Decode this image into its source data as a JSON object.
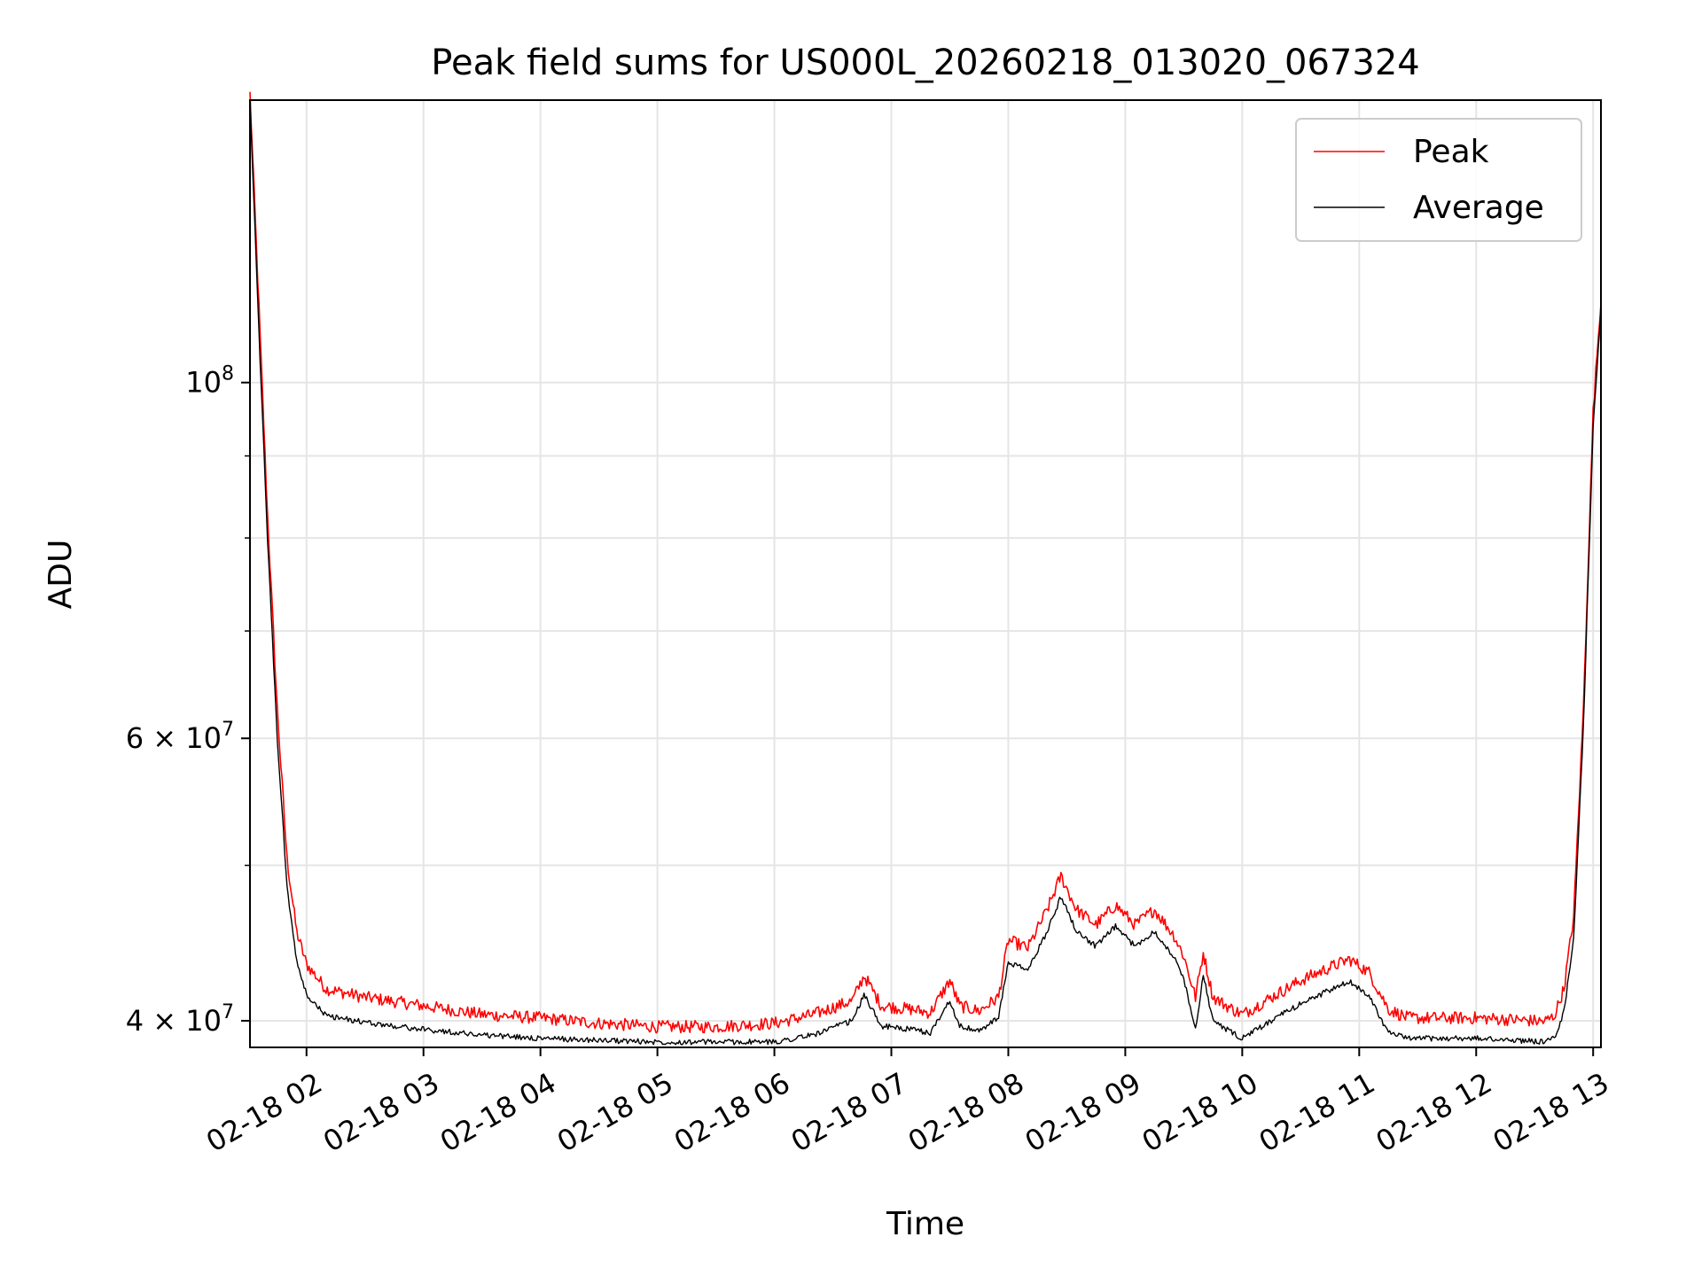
{
  "chart_data": {
    "type": "line",
    "title": "Peak field sums for US000L_20260218_013020_067324",
    "xlabel": "Time",
    "ylabel": "ADU",
    "y_scale": "log",
    "ylim": [
      38500000,
      150000000
    ],
    "xlim": [
      "2026-02-18 01:31",
      "2026-02-18 13:04"
    ],
    "grid": true,
    "legend_position": "top-right",
    "x_ticks": [
      "02-18 02",
      "02-18 03",
      "02-18 04",
      "02-18 05",
      "02-18 06",
      "02-18 07",
      "02-18 08",
      "02-18 09",
      "02-18 10",
      "02-18 11",
      "02-18 12",
      "02-18 13"
    ],
    "y_ticks": [
      {
        "value": 40000000,
        "base": "4",
        "mid": " × 10",
        "exp": "7"
      },
      {
        "value": 60000000,
        "base": "6",
        "mid": " × 10",
        "exp": "7"
      },
      {
        "value": 100000000,
        "base": "",
        "mid": "10",
        "exp": "8"
      }
    ],
    "y_minor_ticks": [
      50000000,
      70000000,
      80000000,
      90000000
    ],
    "x": [
      "2026-02-18 01:31",
      "2026-02-18 01:35",
      "2026-02-18 01:40",
      "2026-02-18 01:45",
      "2026-02-18 01:50",
      "2026-02-18 01:55",
      "2026-02-18 02:00",
      "2026-02-18 02:10",
      "2026-02-18 02:30",
      "2026-02-18 03:00",
      "2026-02-18 03:30",
      "2026-02-18 04:00",
      "2026-02-18 04:30",
      "2026-02-18 05:00",
      "2026-02-18 05:30",
      "2026-02-18 06:00",
      "2026-02-18 06:20",
      "2026-02-18 06:40",
      "2026-02-18 06:46",
      "2026-02-18 06:55",
      "2026-02-18 07:10",
      "2026-02-18 07:20",
      "2026-02-18 07:30",
      "2026-02-18 07:35",
      "2026-02-18 07:45",
      "2026-02-18 07:55",
      "2026-02-18 08:00",
      "2026-02-18 08:10",
      "2026-02-18 08:20",
      "2026-02-18 08:27",
      "2026-02-18 08:35",
      "2026-02-18 08:45",
      "2026-02-18 08:55",
      "2026-02-18 09:05",
      "2026-02-18 09:15",
      "2026-02-18 09:25",
      "2026-02-18 09:30",
      "2026-02-18 09:36",
      "2026-02-18 09:40",
      "2026-02-18 09:45",
      "2026-02-18 09:55",
      "2026-02-18 10:00",
      "2026-02-18 10:15",
      "2026-02-18 10:30",
      "2026-02-18 10:45",
      "2026-02-18 10:55",
      "2026-02-18 11:05",
      "2026-02-18 11:15",
      "2026-02-18 11:25",
      "2026-02-18 11:45",
      "2026-02-18 12:00",
      "2026-02-18 12:20",
      "2026-02-18 12:35",
      "2026-02-18 12:40",
      "2026-02-18 12:45",
      "2026-02-18 12:50",
      "2026-02-18 12:55",
      "2026-02-18 13:00",
      "2026-02-18 13:04"
    ],
    "series": [
      {
        "name": "Peak",
        "color": "#ff0000",
        "values": [
          150000000,
          115000000,
          82000000,
          62000000,
          50000000,
          45000000,
          43000000,
          41500000,
          41000000,
          40500000,
          40000000,
          39800000,
          39500000,
          39300000,
          39300000,
          39500000,
          40000000,
          40800000,
          42300000,
          40500000,
          40300000,
          40100000,
          42000000,
          40500000,
          40200000,
          41000000,
          44500000,
          44000000,
          46500000,
          48800000,
          46500000,
          45500000,
          46800000,
          45500000,
          46500000,
          44800000,
          43500000,
          41000000,
          43700000,
          41000000,
          40300000,
          40000000,
          41000000,
          42000000,
          42800000,
          43300000,
          42500000,
          40300000,
          39800000,
          39800000,
          39800000,
          39700000,
          39600000,
          39900000,
          41500000,
          46000000,
          62000000,
          95000000,
          112000000
        ]
      },
      {
        "name": "Average",
        "color": "#000000",
        "values": [
          150000000,
          112000000,
          80000000,
          60000000,
          48500000,
          43500000,
          41500000,
          40300000,
          39900000,
          39500000,
          39200000,
          39000000,
          38900000,
          38800000,
          38800000,
          38800000,
          39200000,
          40000000,
          41500000,
          39700000,
          39500000,
          39300000,
          41200000,
          39700000,
          39400000,
          40200000,
          43500000,
          43000000,
          45500000,
          47800000,
          45500000,
          44500000,
          45800000,
          44500000,
          45500000,
          43800000,
          42500000,
          39500000,
          42700000,
          40000000,
          39300000,
          39000000,
          40000000,
          41000000,
          41800000,
          42300000,
          41500000,
          39300000,
          39000000,
          39000000,
          39000000,
          38900000,
          38800000,
          39000000,
          40500000,
          45000000,
          61000000,
          94000000,
          111000000
        ]
      }
    ]
  }
}
